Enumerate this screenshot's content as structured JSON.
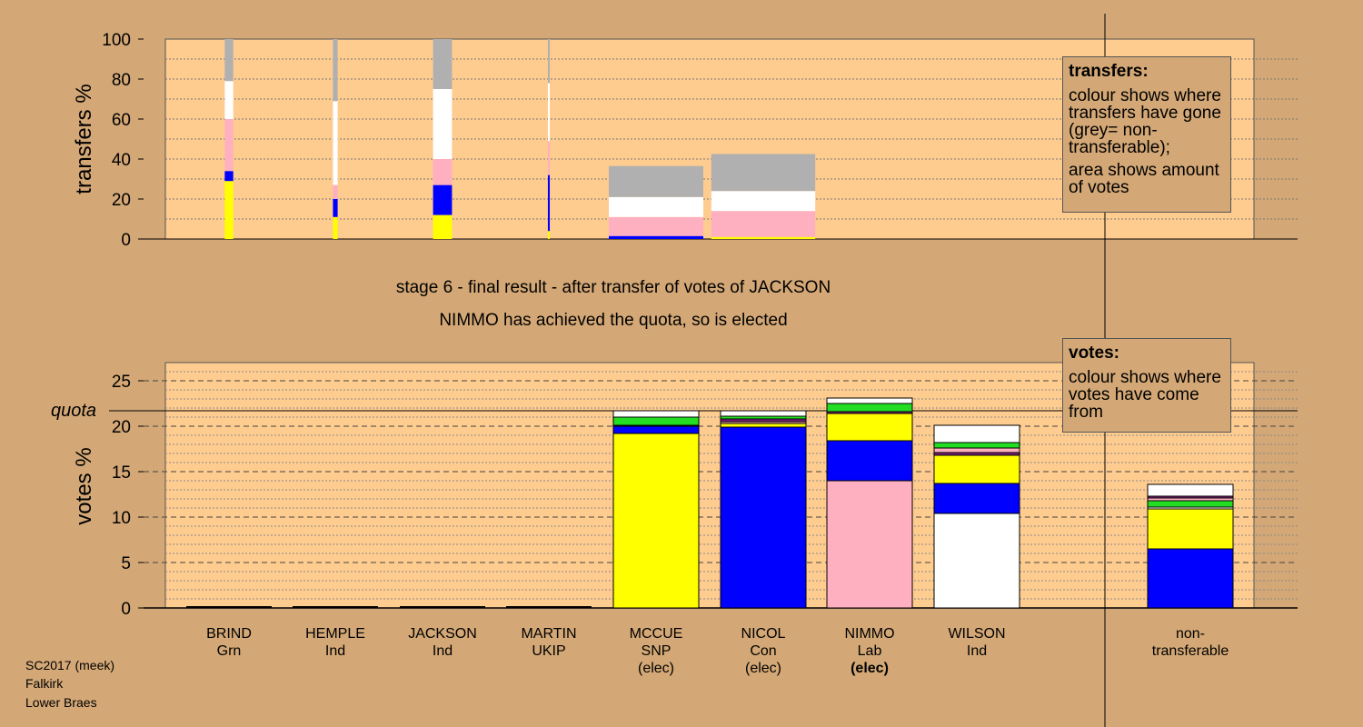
{
  "footer": {
    "line1": "SC2017 (meek)",
    "line2": "Falkirk",
    "line3": "Lower Braes"
  },
  "stage_title": "stage 6 - final result - after transfer of votes of JACKSON",
  "stage_subtitle": "NIMMO has achieved the quota, so is elected",
  "legend_transfers": {
    "title": "transfers:",
    "text1": "colour shows where transfers have gone (grey= non-transferable);",
    "text2": "area shows amount of votes"
  },
  "legend_votes": {
    "title": "votes:",
    "text1": "colour shows where votes have come from"
  },
  "colors": {
    "background": "#d4a876",
    "plot": "#ffcc8f",
    "SNP": "#ffff00",
    "Con": "#0000ff",
    "Lab": "#ffb0c0",
    "Ind": "#ffffff",
    "Grn": "#22dd22",
    "UKIP": "#7a1f7a",
    "nontransferable": "#b0b0b0"
  },
  "candidates": [
    {
      "name": "BRIND",
      "party": "Grn",
      "status": ""
    },
    {
      "name": "HEMPLE",
      "party": "Ind",
      "status": ""
    },
    {
      "name": "JACKSON",
      "party": "Ind",
      "status": ""
    },
    {
      "name": "MARTIN",
      "party": "UKIP",
      "status": ""
    },
    {
      "name": "MCCUE",
      "party": "SNP",
      "status": "(elec)"
    },
    {
      "name": "NICOL",
      "party": "Con",
      "status": "(elec)"
    },
    {
      "name": "NIMMO",
      "party": "Lab",
      "status": "(elec)"
    },
    {
      "name": "WILSON",
      "party": "Ind",
      "status": ""
    },
    {
      "name": "non-",
      "party": "transferable",
      "status": ""
    }
  ],
  "chart_data": [
    {
      "type": "bar",
      "ylabel": "transfers %",
      "ylim": [
        0,
        100
      ],
      "yticks": [
        0,
        20,
        40,
        60,
        80,
        100
      ],
      "bars": [
        {
          "candidate": "BRIND",
          "width_share": 0.09,
          "segments": [
            {
              "party": "SNP",
              "value": 29
            },
            {
              "party": "Con",
              "value": 5
            },
            {
              "party": "Lab",
              "value": 26
            },
            {
              "party": "Ind",
              "value": 19
            },
            {
              "party": "nontransferable",
              "value": 21
            }
          ]
        },
        {
          "candidate": "HEMPLE",
          "width_share": 0.05,
          "segments": [
            {
              "party": "SNP",
              "value": 11
            },
            {
              "party": "Con",
              "value": 9
            },
            {
              "party": "Lab",
              "value": 7
            },
            {
              "party": "Ind",
              "value": 42
            },
            {
              "party": "nontransferable",
              "value": 31
            }
          ]
        },
        {
          "candidate": "JACKSON",
          "width_share": 0.2,
          "segments": [
            {
              "party": "SNP",
              "value": 12
            },
            {
              "party": "Con",
              "value": 15
            },
            {
              "party": "Lab",
              "value": 13
            },
            {
              "party": "Ind",
              "value": 35
            },
            {
              "party": "nontransferable",
              "value": 25
            }
          ]
        },
        {
          "candidate": "MARTIN",
          "width_share": 0.02,
          "segments": [
            {
              "party": "SNP",
              "value": 4
            },
            {
              "party": "Con",
              "value": 28
            },
            {
              "party": "Lab",
              "value": 17
            },
            {
              "party": "Ind",
              "value": 29
            },
            {
              "party": "nontransferable",
              "value": 22
            }
          ]
        },
        {
          "candidate": "MCCUE",
          "width_share": 1.0,
          "segments": [
            {
              "party": "Con",
              "value": 1.5
            },
            {
              "party": "Lab",
              "value": 9.5
            },
            {
              "party": "Ind",
              "value": 10
            },
            {
              "party": "nontransferable",
              "value": 15.5
            }
          ]
        },
        {
          "candidate": "NICOL",
          "width_share": 1.1,
          "segments": [
            {
              "party": "SNP",
              "value": 1
            },
            {
              "party": "Lab",
              "value": 13
            },
            {
              "party": "Ind",
              "value": 10
            },
            {
              "party": "nontransferable",
              "value": 18.5
            }
          ]
        }
      ]
    },
    {
      "type": "bar",
      "ylabel": "votes %",
      "ylim": [
        0,
        27
      ],
      "yticks": [
        0,
        5,
        10,
        15,
        20,
        25
      ],
      "quota": 21.7,
      "quota_label": "quota",
      "bars": [
        {
          "candidate": "BRIND",
          "segments": []
        },
        {
          "candidate": "HEMPLE",
          "segments": []
        },
        {
          "candidate": "JACKSON",
          "segments": []
        },
        {
          "candidate": "MARTIN",
          "segments": []
        },
        {
          "candidate": "MCCUE",
          "segments": [
            {
              "party": "SNP",
              "value": 19.2
            },
            {
              "party": "Con",
              "value": 0.8
            },
            {
              "party": "Lab",
              "value": 0.1
            },
            {
              "party": "Grn",
              "value": 0.9
            },
            {
              "party": "Ind",
              "value": 0.7
            }
          ]
        },
        {
          "candidate": "NICOL",
          "segments": [
            {
              "party": "Con",
              "value": 19.9
            },
            {
              "party": "SNP",
              "value": 0.4
            },
            {
              "party": "Lab",
              "value": 0.2
            },
            {
              "party": "UKIP",
              "value": 0.3
            },
            {
              "party": "Grn",
              "value": 0.3
            },
            {
              "party": "Ind",
              "value": 0.6
            }
          ]
        },
        {
          "candidate": "NIMMO",
          "segments": [
            {
              "party": "Lab",
              "value": 14.0
            },
            {
              "party": "Con",
              "value": 4.4
            },
            {
              "party": "SNP",
              "value": 3.0
            },
            {
              "party": "UKIP",
              "value": 0.2
            },
            {
              "party": "Grn",
              "value": 0.9
            },
            {
              "party": "Ind",
              "value": 0.6
            }
          ]
        },
        {
          "candidate": "WILSON",
          "segments": [
            {
              "party": "Ind",
              "value": 10.4
            },
            {
              "party": "Con",
              "value": 3.3
            },
            {
              "party": "SNP",
              "value": 3.1
            },
            {
              "party": "UKIP",
              "value": 0.3
            },
            {
              "party": "Lab",
              "value": 0.5
            },
            {
              "party": "Grn",
              "value": 0.6
            },
            {
              "party": "Ind",
              "value": 1.9
            }
          ]
        },
        {
          "candidate": "non-transferable",
          "segments": [
            {
              "party": "Con",
              "value": 6.5
            },
            {
              "party": "SNP",
              "value": 4.4
            },
            {
              "party": "Ind",
              "value": 0.2
            },
            {
              "party": "Grn",
              "value": 0.7
            },
            {
              "party": "Lab",
              "value": 0.3
            },
            {
              "party": "UKIP",
              "value": 0.2
            },
            {
              "party": "Ind",
              "value": 1.3
            }
          ]
        }
      ]
    }
  ]
}
